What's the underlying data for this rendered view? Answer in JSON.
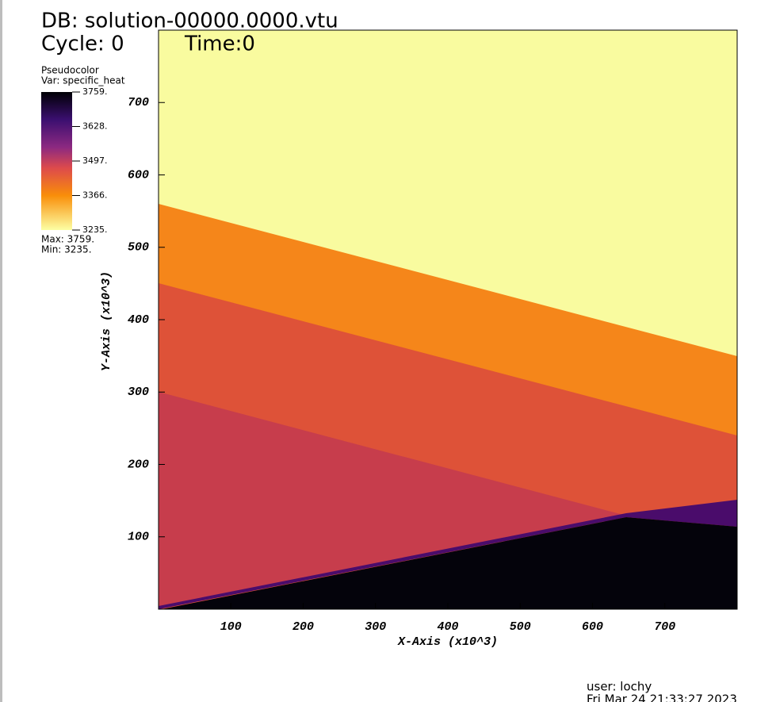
{
  "chart_data": {
    "type": "pseudocolor",
    "title": "DB: solution-00000.0000.vtu",
    "cycle": "Cycle: 0",
    "time": "Time:0",
    "legend": {
      "plot": "Pseudocolor",
      "var": "Var: specific_heat",
      "clim": [
        3235,
        3759
      ],
      "ticks": [
        {
          "value": 3759,
          "label": "3759."
        },
        {
          "value": 3628,
          "label": "3628."
        },
        {
          "value": 3497,
          "label": "3497."
        },
        {
          "value": 3366,
          "label": "3366."
        },
        {
          "value": 3235,
          "label": "3235."
        }
      ],
      "max": "Max:  3759.",
      "min": "Min:  3235."
    },
    "xlabel": "X-Axis (x10^3)",
    "ylabel": "Y-Axis (x10^3)",
    "xlim": [
      0,
      800
    ],
    "ylim": [
      0,
      800
    ],
    "xticks": [
      100,
      200,
      300,
      400,
      500,
      600,
      700
    ],
    "yticks": [
      100,
      200,
      300,
      400,
      500,
      600,
      700
    ],
    "user": "user: lochy",
    "date": "Fri Mar 24 21:33:27 2023"
  }
}
